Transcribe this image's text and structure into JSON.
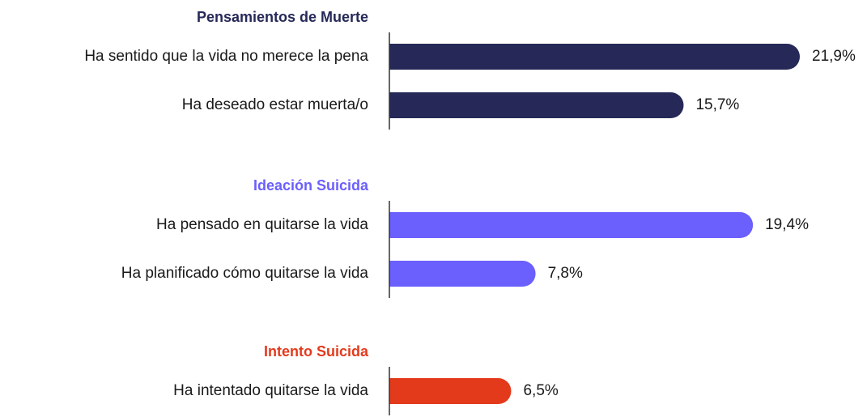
{
  "chart_data": [
    {
      "type": "bar",
      "title": "Pensamientos de Muerte",
      "categories": [
        "Ha sentido que la vida no merece la pena",
        "Ha deseado estar muerta/o"
      ],
      "values": [
        21.9,
        15.7
      ],
      "value_labels": [
        "21,9%",
        "15,7%"
      ],
      "color": "#262957"
    },
    {
      "type": "bar",
      "title": "Ideación Suicida",
      "categories": [
        "Ha pensado en quitarse la vida",
        "Ha planificado cómo quitarse la vida"
      ],
      "values": [
        19.4,
        7.8
      ],
      "value_labels": [
        "19,4%",
        "7,8%"
      ],
      "color": "#6b5ffd"
    },
    {
      "type": "bar",
      "title": "Intento Suicida",
      "categories": [
        "Ha intentado quitarse la vida"
      ],
      "values": [
        6.5
      ],
      "value_labels": [
        "6,5%"
      ],
      "color": "#e43a1c"
    }
  ]
}
